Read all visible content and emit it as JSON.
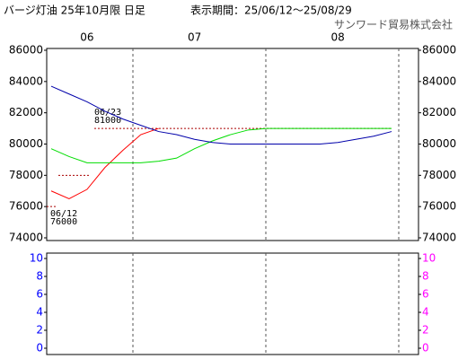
{
  "chart_data": [
    {
      "type": "line",
      "title": "バージ灯油 25年10月限 日足",
      "subtitle": "表示期間：25/06/12～25/08/29",
      "source": "サンワード貿易株式会社",
      "categories": [
        null,
        null,
        "06",
        null,
        null,
        null,
        null,
        null,
        "07",
        null,
        null,
        null,
        null,
        null,
        null,
        null,
        "08",
        null,
        null,
        null
      ],
      "series": [
        {
          "color": "#ff0000",
          "values": [
            77000,
            76500,
            77100,
            78500,
            79600,
            80600,
            81000,
            null,
            null,
            null,
            null,
            null,
            null,
            null,
            null,
            null,
            null,
            null,
            null,
            null
          ]
        },
        {
          "color": "#00dd00",
          "values": [
            79700,
            79200,
            78800,
            78800,
            78800,
            78800,
            78900,
            79100,
            79700,
            80200,
            80600,
            80900,
            81000,
            81000,
            81000,
            81000,
            81000,
            81000,
            81000,
            81000
          ]
        },
        {
          "color": "#0000aa",
          "values": [
            83700,
            83200,
            82700,
            82100,
            81600,
            81200,
            80800,
            80600,
            80300,
            80100,
            80000,
            80000,
            80000,
            80000,
            80000,
            80000,
            80100,
            80300,
            80500,
            80800
          ]
        }
      ],
      "reference_lines": [
        {
          "value": 81000,
          "color": "#aa0000",
          "label": [
            "06/23",
            "81000"
          ]
        },
        {
          "value": 78000,
          "color": "#aa0000"
        },
        {
          "value": 76000,
          "color": "#aa0000",
          "label": [
            "06/12",
            "76000"
          ]
        }
      ],
      "ylim": [
        74000,
        86000
      ],
      "yticks": [
        74000,
        76000,
        78000,
        80000,
        82000,
        84000,
        86000
      ],
      "y2lim": [
        74000,
        86000
      ],
      "y2ticks": [
        74000,
        76000,
        78000,
        80000,
        82000,
        84000,
        86000
      ],
      "tick_color": "#000000"
    },
    {
      "type": "line",
      "series": [],
      "ylim": [
        0,
        10
      ],
      "yticks": [
        0,
        2,
        4,
        6,
        8,
        10
      ],
      "y2lim": [
        0,
        10
      ],
      "y2ticks": [
        0,
        2,
        4,
        6,
        8,
        10
      ],
      "tick_color": "#0000ff",
      "y2tick_color": "#ff00ff"
    }
  ]
}
